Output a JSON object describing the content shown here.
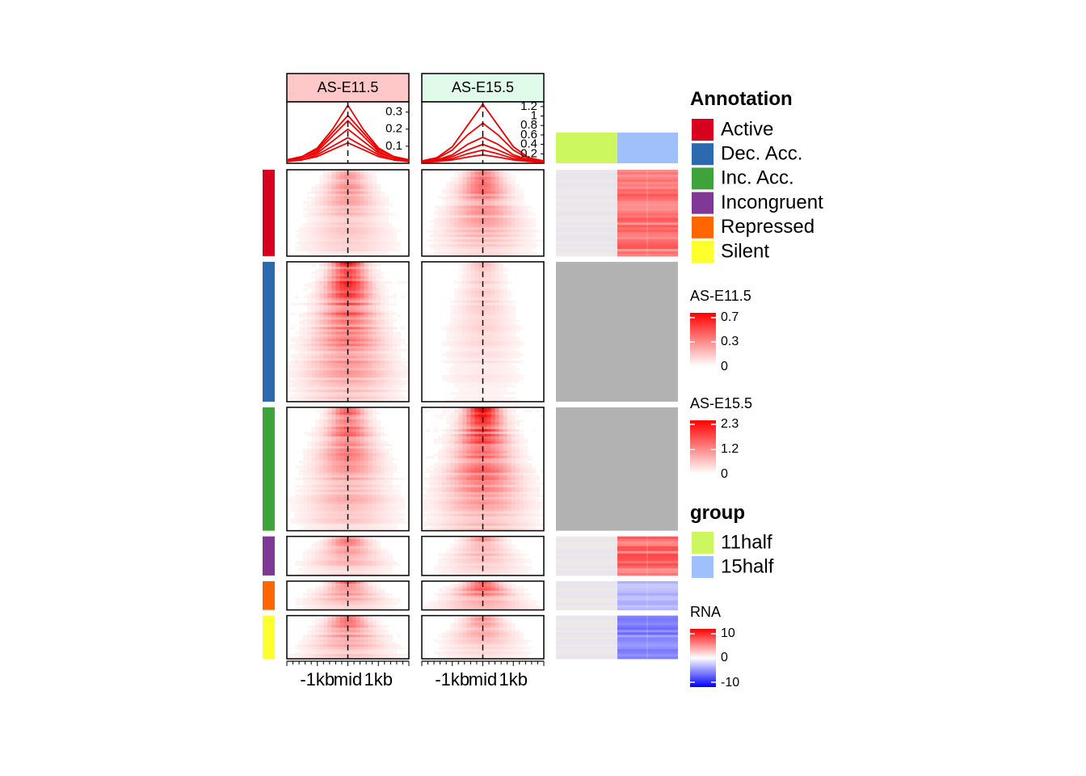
{
  "chart_data": {
    "type": "heatmap",
    "columns": [
      "AS-E11.5",
      "AS-E15.5"
    ],
    "column_colors": {
      "AS-E11.5": "#FFC8C8",
      "AS-E15.5": "#E0FBEA"
    },
    "x_tick_labels": [
      "-1kb",
      "mid",
      "1kb"
    ],
    "x_range_bp": [
      -2000,
      2000
    ],
    "profile_plots": [
      {
        "column": "AS-E11.5",
        "y_ticks": [
          "0.1",
          "0.2",
          "0.3"
        ],
        "ylim": [
          0,
          0.36
        ],
        "series": [
          {
            "values": [
              0.02,
              0.04,
              0.09,
              0.2,
              0.34,
              0.2,
              0.09,
              0.04,
              0.02
            ]
          },
          {
            "values": [
              0.02,
              0.04,
              0.08,
              0.18,
              0.28,
              0.18,
              0.08,
              0.04,
              0.02
            ]
          },
          {
            "values": [
              0.02,
              0.03,
              0.07,
              0.16,
              0.25,
              0.16,
              0.07,
              0.03,
              0.02
            ]
          },
          {
            "values": [
              0.01,
              0.03,
              0.06,
              0.13,
              0.2,
              0.13,
              0.06,
              0.03,
              0.01
            ]
          },
          {
            "values": [
              0.01,
              0.02,
              0.05,
              0.1,
              0.15,
              0.1,
              0.05,
              0.02,
              0.01
            ]
          },
          {
            "values": [
              0.01,
              0.02,
              0.04,
              0.08,
              0.12,
              0.08,
              0.04,
              0.02,
              0.01
            ]
          }
        ]
      },
      {
        "column": "AS-E15.5",
        "y_ticks": [
          "0.2",
          "0.4",
          "0.6",
          "0.8",
          "1",
          "1.2"
        ],
        "ylim": [
          0,
          1.3
        ],
        "series": [
          {
            "values": [
              0.05,
              0.12,
              0.35,
              0.8,
              1.25,
              0.8,
              0.35,
              0.12,
              0.05
            ]
          },
          {
            "values": [
              0.04,
              0.1,
              0.28,
              0.6,
              0.85,
              0.6,
              0.28,
              0.1,
              0.04
            ]
          },
          {
            "values": [
              0.03,
              0.07,
              0.18,
              0.4,
              0.55,
              0.4,
              0.18,
              0.07,
              0.03
            ]
          },
          {
            "values": [
              0.03,
              0.06,
              0.14,
              0.28,
              0.4,
              0.28,
              0.14,
              0.06,
              0.03
            ]
          },
          {
            "values": [
              0.02,
              0.05,
              0.1,
              0.2,
              0.28,
              0.2,
              0.1,
              0.05,
              0.02
            ]
          },
          {
            "values": [
              0.02,
              0.04,
              0.07,
              0.13,
              0.18,
              0.13,
              0.07,
              0.04,
              0.02
            ]
          }
        ]
      }
    ],
    "row_groups": [
      {
        "annotation": "Active",
        "color": "#D7001E",
        "relative_size": 2.1,
        "signal": [
          0.45,
          0.6
        ],
        "rna": [
          0.1,
          5.5
        ]
      },
      {
        "annotation": "Dec. Acc.",
        "color": "#2B6AAF",
        "relative_size": 3.4,
        "signal": [
          0.85,
          0.25
        ],
        "rna": null
      },
      {
        "annotation": "Inc. Acc.",
        "color": "#3EA33A",
        "relative_size": 3.0,
        "signal": [
          0.65,
          0.9
        ],
        "rna": null
      },
      {
        "annotation": "Incongruent",
        "color": "#7F3895",
        "relative_size": 0.95,
        "signal": [
          0.5,
          0.4
        ],
        "rna": [
          0.1,
          6
        ]
      },
      {
        "annotation": "Repressed",
        "color": "#FF6600",
        "relative_size": 0.7,
        "signal": [
          0.55,
          0.7
        ],
        "rna": [
          0.1,
          -3
        ]
      },
      {
        "annotation": "Silent",
        "color": "#FFFF2E",
        "relative_size": 1.05,
        "signal": [
          0.6,
          0.4
        ],
        "rna": [
          0.1,
          -5
        ]
      }
    ],
    "group_bar": [
      {
        "name": "11half",
        "color": "#CCF75F"
      },
      {
        "name": "15half",
        "color": "#A0C0FB"
      }
    ],
    "legends": {
      "annotation": {
        "title": "Annotation",
        "items": [
          {
            "label": "Active",
            "color": "#D7001E"
          },
          {
            "label": "Dec. Acc.",
            "color": "#2B6AAF"
          },
          {
            "label": "Inc. Acc.",
            "color": "#3EA33A"
          },
          {
            "label": "Incongruent",
            "color": "#7F3895"
          },
          {
            "label": "Repressed",
            "color": "#FF6600"
          },
          {
            "label": "Silent",
            "color": "#FFFF2E"
          }
        ]
      },
      "e11": {
        "title": "AS-E11.5",
        "ticks": [
          "0.7",
          "0.3",
          "0"
        ]
      },
      "e15": {
        "title": "AS-E15.5",
        "ticks": [
          "2.3",
          "1.2",
          "0"
        ]
      },
      "group": {
        "title": "group",
        "items": [
          {
            "label": "11half",
            "color": "#CCF75F"
          },
          {
            "label": "15half",
            "color": "#A0C0FB"
          }
        ]
      },
      "rna": {
        "title": "RNA",
        "ticks": [
          "10",
          "0",
          "-10"
        ]
      }
    }
  }
}
